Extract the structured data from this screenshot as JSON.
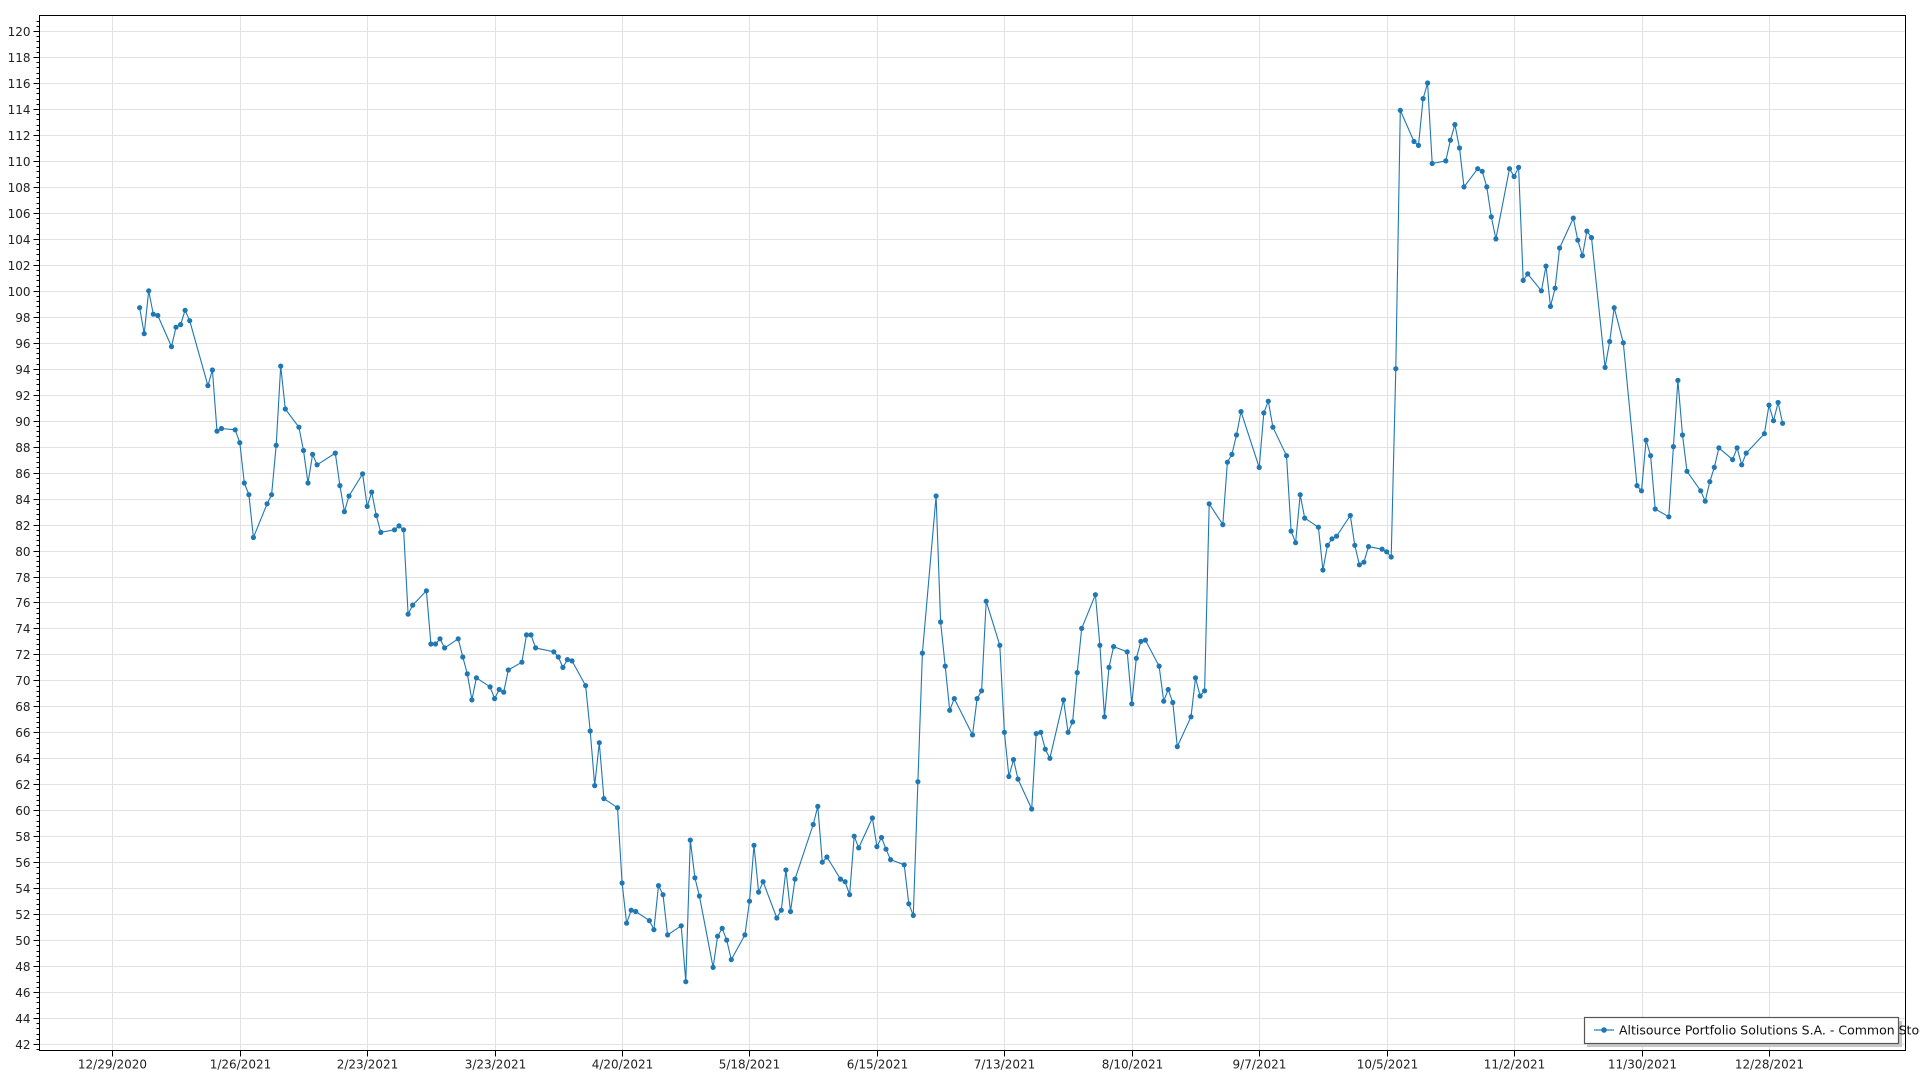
{
  "chart_data": {
    "type": "line",
    "title": "",
    "xlabel": "",
    "ylabel": "",
    "x_axis_type": "date",
    "xlim": [
      "2020-12-13",
      "2022-01-27"
    ],
    "ylim": [
      41.5,
      121.2
    ],
    "grid": true,
    "legend_position": "bottom-right",
    "x_tick_labels": [
      "12/29/2020",
      "1/26/2021",
      "2/23/2021",
      "3/23/2021",
      "4/20/2021",
      "5/18/2021",
      "6/15/2021",
      "7/13/2021",
      "8/10/2021",
      "9/7/2021",
      "10/5/2021",
      "11/2/2021",
      "11/30/2021",
      "12/28/2021"
    ],
    "x_ticks": [
      "2020-12-29",
      "2021-01-26",
      "2021-02-23",
      "2021-03-23",
      "2021-04-20",
      "2021-05-18",
      "2021-06-15",
      "2021-07-13",
      "2021-08-10",
      "2021-09-07",
      "2021-10-05",
      "2021-11-02",
      "2021-11-30",
      "2021-12-28"
    ],
    "y_ticks": [
      42,
      44,
      46,
      48,
      50,
      52,
      54,
      56,
      58,
      60,
      62,
      64,
      66,
      68,
      70,
      72,
      74,
      76,
      78,
      80,
      82,
      84,
      86,
      88,
      90,
      92,
      94,
      96,
      98,
      100,
      102,
      104,
      106,
      108,
      110,
      112,
      114,
      116,
      118,
      120
    ],
    "series": [
      {
        "name": "Altisource Portfolio Solutions S.A. - Common Stock",
        "color": "#1f77b4",
        "marker": "circle",
        "x": [
          "2021-01-04",
          "2021-01-05",
          "2021-01-06",
          "2021-01-07",
          "2021-01-08",
          "2021-01-11",
          "2021-01-12",
          "2021-01-13",
          "2021-01-14",
          "2021-01-15",
          "2021-01-19",
          "2021-01-20",
          "2021-01-21",
          "2021-01-22",
          "2021-01-25",
          "2021-01-26",
          "2021-01-27",
          "2021-01-28",
          "2021-01-29",
          "2021-02-01",
          "2021-02-02",
          "2021-02-03",
          "2021-02-04",
          "2021-02-05",
          "2021-02-08",
          "2021-02-09",
          "2021-02-10",
          "2021-02-11",
          "2021-02-12",
          "2021-02-16",
          "2021-02-17",
          "2021-02-18",
          "2021-02-19",
          "2021-02-22",
          "2021-02-23",
          "2021-02-24",
          "2021-02-25",
          "2021-02-26",
          "2021-03-01",
          "2021-03-02",
          "2021-03-03",
          "2021-03-04",
          "2021-03-05",
          "2021-03-08",
          "2021-03-09",
          "2021-03-10",
          "2021-03-11",
          "2021-03-12",
          "2021-03-15",
          "2021-03-16",
          "2021-03-17",
          "2021-03-18",
          "2021-03-19",
          "2021-03-22",
          "2021-03-23",
          "2021-03-24",
          "2021-03-25",
          "2021-03-26",
          "2021-03-29",
          "2021-03-30",
          "2021-03-31",
          "2021-04-01",
          "2021-04-05",
          "2021-04-06",
          "2021-04-07",
          "2021-04-08",
          "2021-04-09",
          "2021-04-12",
          "2021-04-13",
          "2021-04-14",
          "2021-04-15",
          "2021-04-16",
          "2021-04-19",
          "2021-04-20",
          "2021-04-21",
          "2021-04-22",
          "2021-04-23",
          "2021-04-26",
          "2021-04-27",
          "2021-04-28",
          "2021-04-29",
          "2021-04-30",
          "2021-05-03",
          "2021-05-04",
          "2021-05-05",
          "2021-05-06",
          "2021-05-07",
          "2021-05-10",
          "2021-05-11",
          "2021-05-12",
          "2021-05-13",
          "2021-05-14",
          "2021-05-17",
          "2021-05-18",
          "2021-05-19",
          "2021-05-20",
          "2021-05-21",
          "2021-05-24",
          "2021-05-25",
          "2021-05-26",
          "2021-05-27",
          "2021-05-28",
          "2021-06-01",
          "2021-06-02",
          "2021-06-03",
          "2021-06-04",
          "2021-06-07",
          "2021-06-08",
          "2021-06-09",
          "2021-06-10",
          "2021-06-11",
          "2021-06-14",
          "2021-06-15",
          "2021-06-16",
          "2021-06-17",
          "2021-06-18",
          "2021-06-21",
          "2021-06-22",
          "2021-06-23",
          "2021-06-24",
          "2021-06-25",
          "2021-06-28",
          "2021-06-29",
          "2021-06-30",
          "2021-07-01",
          "2021-07-02",
          "2021-07-06",
          "2021-07-07",
          "2021-07-08",
          "2021-07-09",
          "2021-07-12",
          "2021-07-13",
          "2021-07-14",
          "2021-07-15",
          "2021-07-16",
          "2021-07-19",
          "2021-07-20",
          "2021-07-21",
          "2021-07-22",
          "2021-07-23",
          "2021-07-26",
          "2021-07-27",
          "2021-07-28",
          "2021-07-29",
          "2021-07-30",
          "2021-08-02",
          "2021-08-03",
          "2021-08-04",
          "2021-08-05",
          "2021-08-06",
          "2021-08-09",
          "2021-08-10",
          "2021-08-11",
          "2021-08-12",
          "2021-08-13",
          "2021-08-16",
          "2021-08-17",
          "2021-08-18",
          "2021-08-19",
          "2021-08-20",
          "2021-08-23",
          "2021-08-24",
          "2021-08-25",
          "2021-08-26",
          "2021-08-27",
          "2021-08-30",
          "2021-08-31",
          "2021-09-01",
          "2021-09-02",
          "2021-09-03",
          "2021-09-07",
          "2021-09-08",
          "2021-09-09",
          "2021-09-10",
          "2021-09-13",
          "2021-09-14",
          "2021-09-15",
          "2021-09-16",
          "2021-09-17",
          "2021-09-20",
          "2021-09-21",
          "2021-09-22",
          "2021-09-23",
          "2021-09-24",
          "2021-09-27",
          "2021-09-28",
          "2021-09-29",
          "2021-09-30",
          "2021-10-01",
          "2021-10-04",
          "2021-10-05",
          "2021-10-06",
          "2021-10-07",
          "2021-10-08",
          "2021-10-11",
          "2021-10-12",
          "2021-10-13",
          "2021-10-14",
          "2021-10-15",
          "2021-10-18",
          "2021-10-19",
          "2021-10-20",
          "2021-10-21",
          "2021-10-22",
          "2021-10-25",
          "2021-10-26",
          "2021-10-27",
          "2021-10-28",
          "2021-10-29",
          "2021-11-01",
          "2021-11-02",
          "2021-11-03",
          "2021-11-04",
          "2021-11-05",
          "2021-11-08",
          "2021-11-09",
          "2021-11-10",
          "2021-11-11",
          "2021-11-12",
          "2021-11-15",
          "2021-11-16",
          "2021-11-17",
          "2021-11-18",
          "2021-11-19",
          "2021-11-22",
          "2021-11-23",
          "2021-11-24",
          "2021-11-26",
          "2021-11-29",
          "2021-11-30",
          "2021-12-01",
          "2021-12-02",
          "2021-12-03",
          "2021-12-06",
          "2021-12-07",
          "2021-12-08",
          "2021-12-09",
          "2021-12-10",
          "2021-12-13",
          "2021-12-14",
          "2021-12-15",
          "2021-12-16",
          "2021-12-17",
          "2021-12-20",
          "2021-12-21",
          "2021-12-22",
          "2021-12-23",
          "2021-12-27",
          "2021-12-28",
          "2021-12-29",
          "2021-12-30",
          "2021-12-31"
        ],
        "y": [
          98.7,
          96.7,
          100,
          98.2,
          98.1,
          95.7,
          97.2,
          97.4,
          98.5,
          97.7,
          92.7,
          93.9,
          89.2,
          89.4,
          89.3,
          88.3,
          85.2,
          84.3,
          81,
          83.6,
          84.3,
          88.1,
          94.2,
          90.9,
          89.5,
          87.7,
          85.2,
          87.4,
          86.6,
          87.5,
          85,
          83,
          84.2,
          85.9,
          83.4,
          84.5,
          82.7,
          81.4,
          81.6,
          81.9,
          81.6,
          75.1,
          75.8,
          76.9,
          72.8,
          72.8,
          73.2,
          72.5,
          73.2,
          71.8,
          70.5,
          68.5,
          70.2,
          69.5,
          68.6,
          69.3,
          69.1,
          70.8,
          71.4,
          73.5,
          73.5,
          72.5,
          72.2,
          71.8,
          71,
          71.6,
          71.5,
          69.6,
          66.1,
          61.9,
          65.2,
          60.9,
          60.2,
          54.4,
          51.3,
          52.3,
          52.2,
          51.5,
          50.8,
          54.2,
          53.5,
          50.4,
          51.1,
          46.8,
          57.7,
          54.8,
          53.4,
          47.9,
          50.3,
          50.9,
          50,
          48.5,
          50.4,
          53,
          57.3,
          53.7,
          54.5,
          51.7,
          52.3,
          55.4,
          52.2,
          54.7,
          58.9,
          60.3,
          56,
          56.4,
          54.7,
          54.5,
          53.5,
          58,
          57.1,
          59.4,
          57.2,
          57.9,
          57,
          56.2,
          55.8,
          52.8,
          51.9,
          62.2,
          72.1,
          84.2,
          74.5,
          71.1,
          67.7,
          68.6,
          65.8,
          68.6,
          69.2,
          76.1,
          72.7,
          66,
          62.6,
          63.9,
          62.4,
          60.1,
          65.9,
          66,
          64.7,
          64,
          68.5,
          66,
          66.8,
          70.6,
          74,
          76.6,
          72.7,
          67.2,
          71,
          72.6,
          72.2,
          68.2,
          71.7,
          73,
          73.1,
          71.1,
          68.4,
          69.3,
          68.3,
          64.9,
          67.2,
          70.2,
          68.8,
          69.2,
          83.6,
          82,
          86.8,
          87.4,
          88.9,
          90.7,
          86.4,
          90.6,
          91.5,
          89.5,
          87.3,
          81.5,
          80.6,
          84.3,
          82.5,
          81.8,
          78.5,
          80.4,
          80.9,
          81.1,
          82.7,
          80.4,
          78.9,
          79.1,
          80.3,
          80.1,
          79.9,
          79.5,
          94,
          113.9,
          111.5,
          111.2,
          114.8,
          116,
          109.8,
          110,
          111.6,
          112.8,
          111,
          108,
          109.4,
          109.2,
          108,
          105.7,
          104,
          109.4,
          108.8,
          109.5,
          100.8,
          101.3,
          100,
          101.9,
          98.8,
          100.2,
          103.3,
          105.6,
          103.9,
          102.7,
          104.6,
          104.1,
          94.1,
          96.1,
          98.7,
          96,
          85,
          84.6,
          88.5,
          87.3,
          83.2,
          82.6,
          88,
          93.1,
          88.9,
          86.1,
          84.6,
          83.8,
          85.3,
          86.4,
          87.9,
          87,
          87.9,
          86.6,
          87.5,
          89,
          91.2,
          90,
          91.4,
          89.8
        ]
      }
    ]
  }
}
